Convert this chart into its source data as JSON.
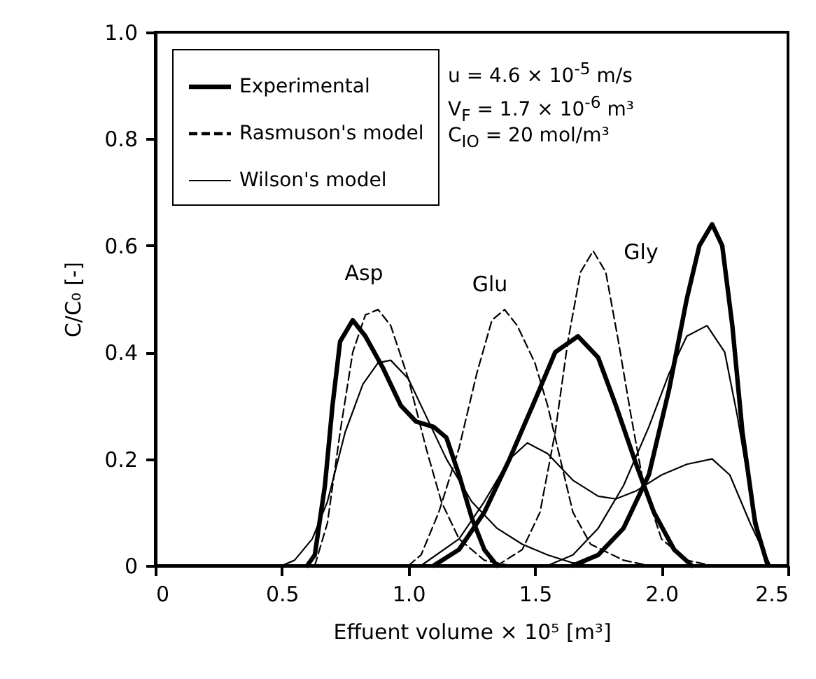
{
  "chart_data": {
    "type": "line",
    "xlabel": "Effuent volume × 10⁵   [m³]",
    "ylabel": "C/C₀  [-]",
    "xlim": [
      0,
      2.5
    ],
    "xticks": [
      0,
      {
        "value": 0.5,
        "label": "0.5"
      },
      {
        "value": 1,
        "label": "1.0"
      },
      {
        "value": 1.5,
        "label": "1.5"
      },
      {
        "value": 2,
        "label": "2.0"
      },
      {
        "value": 2.5,
        "label": "2.5"
      }
    ],
    "ylim": [
      0,
      1
    ],
    "yticks": [
      0,
      {
        "value": 0.2,
        "label": "0.2"
      },
      {
        "value": 0.4,
        "label": "0.4"
      },
      {
        "value": 0.6,
        "label": "0.6"
      },
      {
        "value": 0.8,
        "label": "0.8"
      },
      {
        "value": 1,
        "label": "1.0"
      }
    ],
    "grid": false,
    "legend": "top left",
    "marker": "none",
    "series": [
      {
        "name": "Experimental",
        "color": "#000000",
        "line_style": "solid",
        "x": [
          0.6,
          0.63,
          0.67,
          0.7,
          0.73,
          0.78,
          0.83,
          0.9,
          0.97,
          1.03,
          1.1,
          1.15,
          1.2,
          1.25,
          1.3,
          1.35
        ],
        "values": [
          0,
          0.02,
          0.15,
          0.3,
          0.42,
          0.46,
          0.43,
          0.37,
          0.3,
          0.27,
          0.26,
          0.24,
          0.17,
          0.09,
          0.03,
          0
        ]
      },
      {
        "name": "Rasmuson's model",
        "color": "#000000",
        "line_style": "dashed",
        "x": [
          0.63,
          0.68,
          0.73,
          0.78,
          0.83,
          0.88,
          0.93,
          1.0,
          1.07,
          1.13,
          1.2,
          1.3,
          1.4
        ],
        "values": [
          0,
          0.08,
          0.25,
          0.4,
          0.47,
          0.48,
          0.45,
          0.35,
          0.22,
          0.12,
          0.05,
          0.01,
          0
        ]
      },
      {
        "name": "Wilson's model",
        "color": "#000000",
        "line_style": "solid",
        "x": [
          0.5,
          0.55,
          0.62,
          0.68,
          0.75,
          0.82,
          0.88,
          0.93,
          1.0,
          1.07,
          1.15,
          1.25,
          1.35,
          1.45,
          1.55,
          1.65,
          1.72
        ],
        "values": [
          0,
          0.01,
          0.05,
          0.12,
          0.25,
          0.34,
          0.38,
          0.385,
          0.35,
          0.28,
          0.2,
          0.12,
          0.07,
          0.04,
          0.02,
          0.005,
          0
        ]
      },
      {
        "color": "#000000",
        "line_style": "solid",
        "x": [
          1.1,
          1.2,
          1.3,
          1.4,
          1.5,
          1.58,
          1.67,
          1.75,
          1.82,
          1.9,
          1.97,
          2.05,
          2.12
        ],
        "values": [
          0,
          0.03,
          0.1,
          0.2,
          0.31,
          0.4,
          0.43,
          0.39,
          0.3,
          0.19,
          0.1,
          0.03,
          0
        ]
      },
      {
        "color": "#000000",
        "line_style": "dashed",
        "x": [
          1.0,
          1.05,
          1.12,
          1.2,
          1.27,
          1.33,
          1.38,
          1.43,
          1.5,
          1.55,
          1.6,
          1.65,
          1.72,
          1.85,
          1.95
        ],
        "values": [
          0,
          0.02,
          0.1,
          0.22,
          0.36,
          0.46,
          0.48,
          0.45,
          0.38,
          0.3,
          0.2,
          0.1,
          0.04,
          0.01,
          0
        ]
      },
      {
        "color": "#000000",
        "line_style": "solid",
        "x": [
          1.05,
          1.2,
          1.3,
          1.4,
          1.47,
          1.55,
          1.65,
          1.75,
          1.82,
          1.9,
          2.0,
          2.1,
          2.2,
          2.27,
          2.35,
          2.43
        ],
        "values": [
          0,
          0.05,
          0.12,
          0.2,
          0.23,
          0.21,
          0.16,
          0.13,
          0.125,
          0.14,
          0.17,
          0.19,
          0.2,
          0.17,
          0.08,
          0
        ]
      },
      {
        "color": "#000000",
        "line_style": "solid",
        "x": [
          1.65,
          1.75,
          1.85,
          1.95,
          2.03,
          2.1,
          2.15,
          2.2,
          2.24,
          2.28,
          2.32,
          2.37,
          2.42
        ],
        "values": [
          0,
          0.02,
          0.07,
          0.17,
          0.33,
          0.5,
          0.6,
          0.64,
          0.6,
          0.45,
          0.25,
          0.08,
          0
        ]
      },
      {
        "color": "#000000",
        "line_style": "dashed",
        "x": [
          1.35,
          1.45,
          1.52,
          1.58,
          1.63,
          1.68,
          1.73,
          1.78,
          1.83,
          1.88,
          1.93,
          2.0,
          2.1,
          2.2
        ],
        "values": [
          0,
          0.03,
          0.1,
          0.25,
          0.42,
          0.55,
          0.59,
          0.55,
          0.42,
          0.28,
          0.15,
          0.05,
          0.01,
          0
        ]
      },
      {
        "color": "#000000",
        "line_style": "solid",
        "x": [
          1.55,
          1.65,
          1.75,
          1.85,
          1.95,
          2.03,
          2.1,
          2.18,
          2.25,
          2.3,
          2.35,
          2.4,
          2.43
        ],
        "values": [
          0,
          0.02,
          0.07,
          0.15,
          0.26,
          0.36,
          0.43,
          0.45,
          0.4,
          0.28,
          0.14,
          0.03,
          0
        ]
      }
    ],
    "annotations": [
      "u = 4.6 × 10$^{-5}$ m/s",
      "V$_{F}$ = 1.7 × 10$^{-6}$ m³",
      "C$_{IO}$ = 20 mol/m³",
      "Asp",
      "Glu",
      "Gly"
    ]
  }
}
